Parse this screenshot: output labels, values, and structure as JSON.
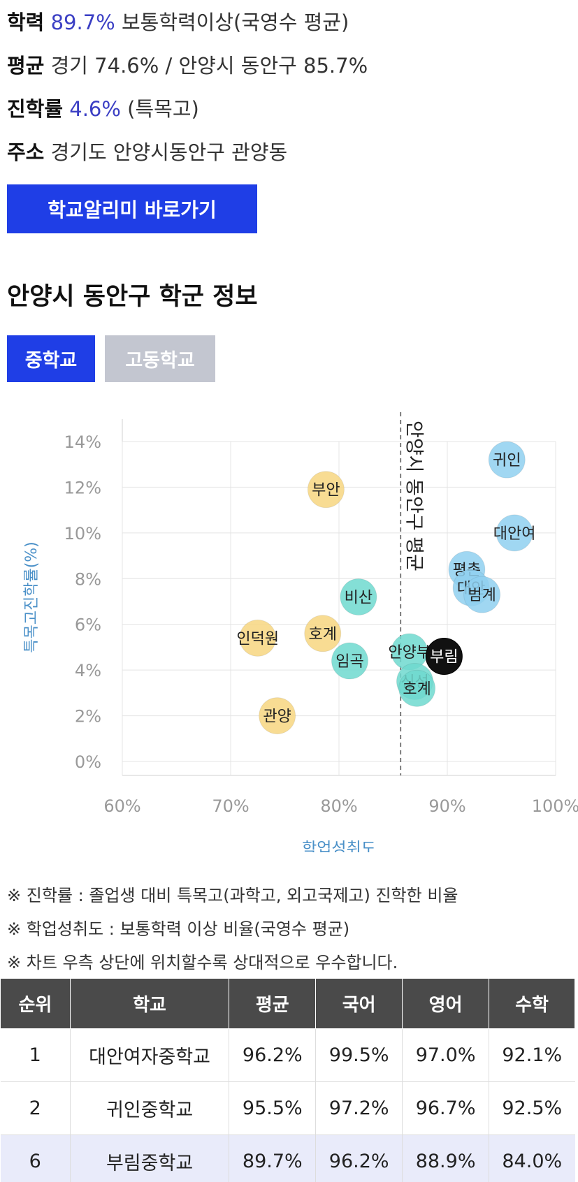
{
  "info": {
    "academic": {
      "label": "학력",
      "value": "89.7%",
      "desc": "보통학력이상(국영수 평균)"
    },
    "average": {
      "label": "평균",
      "text": "경기 74.6% / 안양시 동안구 85.7%"
    },
    "advance": {
      "label": "진학률",
      "value": "4.6%",
      "desc": "(특목고)"
    },
    "address": {
      "label": "주소",
      "text": "경기도 안양시동안구 관양동"
    }
  },
  "link_button": "학교알리미 바로가기",
  "section_title": "안양시 동안구 학군 정보",
  "tabs": {
    "middle": "중학교",
    "high": "고동학교"
  },
  "colors": {
    "accent": "#1f3ee6",
    "highlight_text": "#3b3fc4",
    "blue": "#8fd0f0",
    "teal": "#6fd9cf",
    "yellow": "#f7d680",
    "black": "#111111",
    "axis_label": "#4a90c8"
  },
  "chart_data": {
    "type": "scatter",
    "xlabel": "학업성취도",
    "ylabel": "특목고진학률(%)",
    "xlim": [
      60,
      100
    ],
    "ylim": [
      0,
      14
    ],
    "x_ticks": [
      "60%",
      "70%",
      "80%",
      "90%",
      "100%"
    ],
    "y_ticks": [
      "0%",
      "2%",
      "4%",
      "6%",
      "8%",
      "10%",
      "12%",
      "14%"
    ],
    "reference_line": {
      "x": 85.7,
      "label": "안양시 동안구 평균"
    },
    "grid": true,
    "points": [
      {
        "name": "귀인",
        "x": 95.5,
        "y": 13.2,
        "group": "blue"
      },
      {
        "name": "대안여",
        "x": 96.2,
        "y": 10.0,
        "group": "blue"
      },
      {
        "name": "평촌",
        "x": 91.8,
        "y": 8.4,
        "group": "blue"
      },
      {
        "name": "대안",
        "x": 92.2,
        "y": 7.6,
        "group": "blue"
      },
      {
        "name": "범계",
        "x": 93.2,
        "y": 7.3,
        "group": "blue"
      },
      {
        "name": "비산",
        "x": 81.8,
        "y": 7.2,
        "group": "teal"
      },
      {
        "name": "임곡",
        "x": 81.0,
        "y": 4.4,
        "group": "teal"
      },
      {
        "name": "안양부",
        "x": 86.5,
        "y": 4.8,
        "group": "teal"
      },
      {
        "name": "신성",
        "x": 87.0,
        "y": 3.5,
        "group": "teal"
      },
      {
        "name": "호계",
        "x": 87.2,
        "y": 3.2,
        "group": "teal"
      },
      {
        "name": "부림",
        "x": 89.7,
        "y": 4.6,
        "group": "black"
      },
      {
        "name": "부안",
        "x": 78.8,
        "y": 11.9,
        "group": "yellow"
      },
      {
        "name": "호계",
        "x": 78.5,
        "y": 5.6,
        "group": "yellow"
      },
      {
        "name": "인덕원",
        "x": 72.5,
        "y": 5.4,
        "group": "yellow"
      },
      {
        "name": "관양",
        "x": 74.3,
        "y": 2.0,
        "group": "yellow"
      }
    ]
  },
  "notes": [
    "※ 진학률 : 졸업생 대비 특목고(과학고, 외고국제고) 진학한 비율",
    "※ 학업성취도 : 보통학력 이상 비율(국영수 평균)",
    "※ 차트 우측 상단에 위치할수록 상대적으로 우수합니다."
  ],
  "table": {
    "headers": [
      "순위",
      "학교",
      "평균",
      "국어",
      "영어",
      "수학"
    ],
    "rows": [
      {
        "cells": [
          "1",
          "대안여자중학교",
          "96.2%",
          "99.5%",
          "97.0%",
          "92.1%"
        ],
        "highlight": false
      },
      {
        "cells": [
          "2",
          "귀인중학교",
          "95.5%",
          "97.2%",
          "96.7%",
          "92.5%"
        ],
        "highlight": false
      },
      {
        "cells": [
          "6",
          "부림중학교",
          "89.7%",
          "96.2%",
          "88.9%",
          "84.0%"
        ],
        "highlight": true
      }
    ]
  }
}
